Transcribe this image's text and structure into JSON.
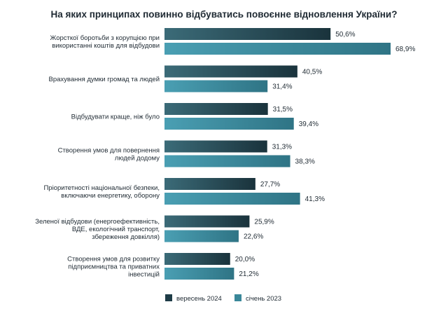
{
  "chart_data": {
    "type": "bar",
    "orientation": "horizontal",
    "title": "На яких принципах повинно відбуватись повоєнне відновлення України?",
    "categories": [
      [
        "Жорсткої боротьби з корупцією при",
        "використанні коштів для відбудови"
      ],
      [
        "Врахування думки громад та людей"
      ],
      [
        "Відбудувати краще, ніж було"
      ],
      [
        "Створення умов для повернення",
        "людей додому"
      ],
      [
        "Пріоритетності національної безпеки,",
        "включаючи енергетику, оборону"
      ],
      [
        "Зеленої відбудови (енергоефективність,",
        "ВДЕ, екологічний транспорт,",
        "збереження довкілля)"
      ],
      [
        "Створення умов для розвитку",
        "підприємництва та приватних",
        "інвестицій"
      ]
    ],
    "series": [
      {
        "name": "вересень 2024",
        "color": "#1e3c47",
        "values": [
          50.6,
          40.5,
          31.5,
          31.3,
          27.7,
          25.9,
          20.0
        ],
        "labels": [
          "50,6%",
          "40,5%",
          "31,5%",
          "31,3%",
          "27,7%",
          "25,9%",
          "20,0%"
        ]
      },
      {
        "name": "січень 2023",
        "color": "#3a8799",
        "values": [
          68.9,
          31.4,
          39.4,
          38.3,
          41.3,
          22.6,
          21.2
        ],
        "labels": [
          "68,9%",
          "31,4%",
          "39,4%",
          "38,3%",
          "41,3%",
          "22,6%",
          "21,2%"
        ]
      }
    ],
    "xlim": [
      0,
      100
    ],
    "grid": false,
    "legend_position": "bottom"
  }
}
